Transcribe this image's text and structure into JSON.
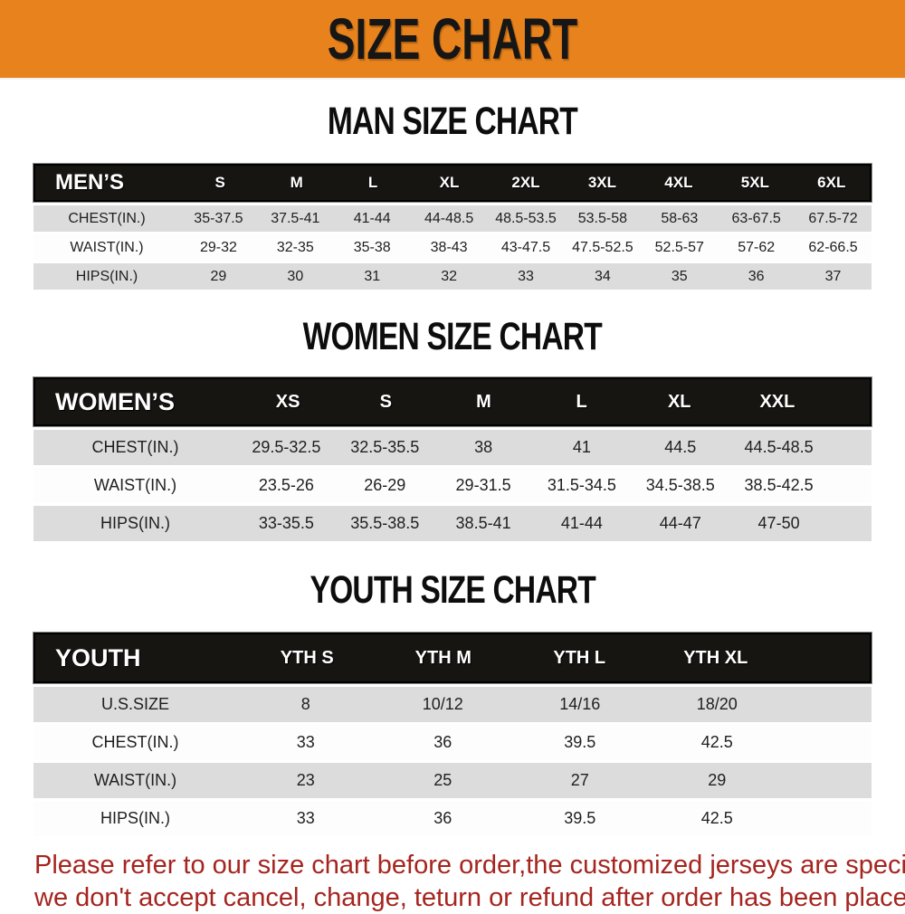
{
  "banner": {
    "title": "SIZE CHART",
    "bg_color": "#E8821C",
    "text_color": "#161616"
  },
  "sections": [
    {
      "title": "MAN SIZE CHART",
      "header_label": "MEN’S",
      "columns": [
        "S",
        "M",
        "L",
        "XL",
        "2XL",
        "3XL",
        "4XL",
        "5XL",
        "6XL"
      ],
      "rows": [
        {
          "label": "CHEST(IN.)",
          "values": [
            "35-37.5",
            "37.5-41",
            "41-44",
            "44-48.5",
            "48.5-53.5",
            "53.5-58",
            "58-63",
            "63-67.5",
            "67.5-72"
          ]
        },
        {
          "label": "WAIST(IN.)",
          "values": [
            "29-32",
            "32-35",
            "35-38",
            "38-43",
            "43-47.5",
            "47.5-52.5",
            "52.5-57",
            "57-62",
            "62-66.5"
          ]
        },
        {
          "label": "HIPS(IN.)",
          "values": [
            "29",
            "30",
            "31",
            "32",
            "33",
            "34",
            "35",
            "36",
            "37"
          ]
        }
      ]
    },
    {
      "title": "WOMEN SIZE CHART",
      "header_label": "WOMEN’S",
      "columns": [
        "XS",
        "S",
        "M",
        "L",
        "XL",
        "XXL"
      ],
      "rows": [
        {
          "label": "CHEST(IN.)",
          "values": [
            "29.5-32.5",
            "32.5-35.5",
            "38",
            "41",
            "44.5",
            "44.5-48.5"
          ]
        },
        {
          "label": "WAIST(IN.)",
          "values": [
            "23.5-26",
            "26-29",
            "29-31.5",
            "31.5-34.5",
            "34.5-38.5",
            "38.5-42.5"
          ]
        },
        {
          "label": "HIPS(IN.)",
          "values": [
            "33-35.5",
            "35.5-38.5",
            "38.5-41",
            "41-44",
            "44-47",
            "47-50"
          ]
        }
      ]
    },
    {
      "title": "YOUTH SIZE CHART",
      "header_label": "YOUTH",
      "columns": [
        "YTH S",
        "YTH M",
        "YTH L",
        "YTH XL"
      ],
      "rows": [
        {
          "label": "U.S.SIZE",
          "values": [
            "8",
            "10/12",
            "14/16",
            "18/20"
          ]
        },
        {
          "label": "CHEST(IN.)",
          "values": [
            "33",
            "36",
            "39.5",
            "42.5"
          ]
        },
        {
          "label": "WAIST(IN.)",
          "values": [
            "23",
            "25",
            "27",
            "29"
          ]
        },
        {
          "label": "HIPS(IN.)",
          "values": [
            "33",
            "36",
            "39.5",
            "42.5"
          ]
        }
      ]
    }
  ],
  "footer": {
    "line1": "Please refer to our size chart before order,the customized jerseys are special products,",
    "line2": "we don't accept cancel, change, teturn or refund after order has been placed!",
    "text_color": "#A5251F"
  }
}
